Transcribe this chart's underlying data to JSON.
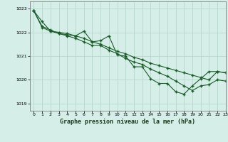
{
  "xlabel": "Graphe pression niveau de la mer (hPa)",
  "xlim": [
    -0.5,
    23
  ],
  "ylim": [
    1018.7,
    1023.3
  ],
  "yticks": [
    1019,
    1020,
    1021,
    1022,
    1023
  ],
  "xticks": [
    0,
    1,
    2,
    3,
    4,
    5,
    6,
    7,
    8,
    9,
    10,
    11,
    12,
    13,
    14,
    15,
    16,
    17,
    18,
    19,
    20,
    21,
    22,
    23
  ],
  "bg_color": "#d5eee8",
  "grid_color": "#b8d8cc",
  "line_color": "#1a5c28",
  "line1_x": [
    0,
    1,
    2,
    3,
    4,
    5,
    6,
    7,
    8,
    9,
    10,
    11,
    12,
    13,
    14,
    15,
    16,
    17,
    18,
    19,
    20,
    21,
    22,
    23
  ],
  "line1_y": [
    1022.9,
    1022.45,
    1022.05,
    1022.0,
    1021.95,
    1021.85,
    1021.75,
    1021.6,
    1021.5,
    1021.35,
    1021.2,
    1021.1,
    1020.95,
    1020.85,
    1020.7,
    1020.6,
    1020.5,
    1020.4,
    1020.3,
    1020.2,
    1020.1,
    1020.0,
    1020.35,
    1020.3
  ],
  "line2_x": [
    0,
    1,
    2,
    3,
    4,
    5,
    6,
    7,
    8,
    9,
    10,
    11,
    12,
    13,
    14,
    15,
    16,
    17,
    18,
    19,
    20,
    21,
    22,
    23
  ],
  "line2_y": [
    1022.9,
    1022.25,
    1022.1,
    1021.95,
    1021.9,
    1021.85,
    1022.05,
    1021.6,
    1021.65,
    1021.85,
    1021.05,
    1021.0,
    1020.55,
    1020.55,
    1020.05,
    1019.85,
    1019.85,
    1019.5,
    1019.4,
    1019.75,
    1020.05,
    1020.35,
    1020.35,
    1020.3
  ],
  "line3_x": [
    0,
    1,
    2,
    3,
    4,
    5,
    6,
    7,
    8,
    9,
    10,
    11,
    12,
    13,
    14,
    15,
    16,
    17,
    18,
    19,
    20,
    21,
    22,
    23
  ],
  "line3_y": [
    1022.9,
    1022.2,
    1022.05,
    1021.95,
    1021.85,
    1021.75,
    1021.6,
    1021.45,
    1021.45,
    1021.25,
    1021.1,
    1020.9,
    1020.75,
    1020.65,
    1020.45,
    1020.3,
    1020.15,
    1019.95,
    1019.75,
    1019.55,
    1019.75,
    1019.8,
    1020.0,
    1019.95
  ]
}
